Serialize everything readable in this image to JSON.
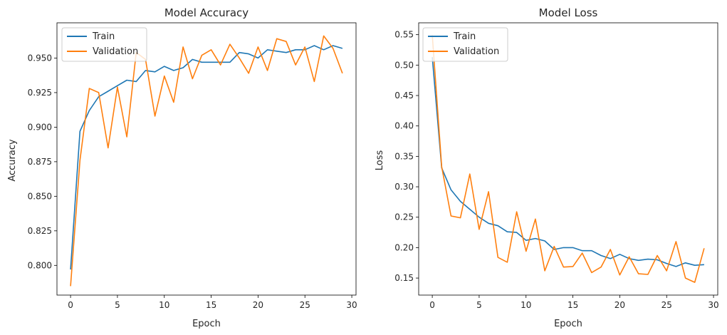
{
  "chart_data": [
    {
      "type": "line",
      "title": "Model Accuracy",
      "xlabel": "Epoch",
      "ylabel": "Accuracy",
      "xlim": [
        -1.45,
        30.45
      ],
      "ylim": [
        0.7785,
        0.9755
      ],
      "xticks": [
        0,
        5,
        10,
        15,
        20,
        25,
        30
      ],
      "yticks": [
        0.8,
        0.825,
        0.85,
        0.875,
        0.9,
        0.925,
        0.95
      ],
      "ytick_labels": [
        "0.800",
        "0.825",
        "0.850",
        "0.875",
        "0.900",
        "0.925",
        "0.950"
      ],
      "legend": "top-left",
      "grid": false,
      "x": [
        0,
        1,
        2,
        3,
        4,
        5,
        6,
        7,
        8,
        9,
        10,
        11,
        12,
        13,
        14,
        15,
        16,
        17,
        18,
        19,
        20,
        21,
        22,
        23,
        24,
        25,
        26,
        27,
        28,
        29
      ],
      "series": [
        {
          "name": "Train",
          "color": "#1f77b4",
          "values": [
            0.797,
            0.897,
            0.912,
            0.922,
            0.926,
            0.93,
            0.934,
            0.933,
            0.941,
            0.94,
            0.944,
            0.941,
            0.943,
            0.949,
            0.947,
            0.947,
            0.947,
            0.947,
            0.954,
            0.953,
            0.95,
            0.956,
            0.955,
            0.954,
            0.956,
            0.956,
            0.959,
            0.956,
            0.959,
            0.957
          ]
        },
        {
          "name": "Validation",
          "color": "#ff7f0e",
          "values": [
            0.785,
            0.876,
            0.928,
            0.925,
            0.885,
            0.929,
            0.893,
            0.954,
            0.949,
            0.908,
            0.937,
            0.918,
            0.958,
            0.935,
            0.952,
            0.956,
            0.945,
            0.96,
            0.95,
            0.939,
            0.958,
            0.941,
            0.964,
            0.962,
            0.945,
            0.958,
            0.933,
            0.966,
            0.957,
            0.939
          ]
        }
      ]
    },
    {
      "type": "line",
      "title": "Model Loss",
      "xlabel": "Epoch",
      "ylabel": "Loss",
      "xlim": [
        -1.45,
        30.45
      ],
      "ylim": [
        0.122,
        0.5695
      ],
      "xticks": [
        0,
        5,
        10,
        15,
        20,
        25,
        30
      ],
      "yticks": [
        0.15,
        0.2,
        0.25,
        0.3,
        0.35,
        0.4,
        0.45,
        0.5,
        0.55
      ],
      "ytick_labels": [
        "0.15",
        "0.20",
        "0.25",
        "0.30",
        "0.35",
        "0.40",
        "0.45",
        "0.50",
        "0.55"
      ],
      "legend": "top-left",
      "grid": false,
      "x": [
        0,
        1,
        2,
        3,
        4,
        5,
        6,
        7,
        8,
        9,
        10,
        11,
        12,
        13,
        14,
        15,
        16,
        17,
        18,
        19,
        20,
        21,
        22,
        23,
        24,
        25,
        26,
        27,
        28,
        29
      ],
      "series": [
        {
          "name": "Train",
          "color": "#1f77b4",
          "values": [
            0.513,
            0.331,
            0.295,
            0.276,
            0.263,
            0.25,
            0.24,
            0.236,
            0.226,
            0.225,
            0.212,
            0.215,
            0.211,
            0.197,
            0.2,
            0.2,
            0.195,
            0.195,
            0.187,
            0.182,
            0.189,
            0.182,
            0.179,
            0.181,
            0.18,
            0.174,
            0.169,
            0.175,
            0.171,
            0.172
          ]
        },
        {
          "name": "Validation",
          "color": "#ff7f0e",
          "values": [
            0.549,
            0.333,
            0.252,
            0.249,
            0.321,
            0.23,
            0.292,
            0.184,
            0.176,
            0.259,
            0.194,
            0.247,
            0.162,
            0.202,
            0.168,
            0.169,
            0.191,
            0.159,
            0.168,
            0.197,
            0.155,
            0.185,
            0.157,
            0.156,
            0.187,
            0.162,
            0.21,
            0.15,
            0.143,
            0.199
          ]
        }
      ]
    }
  ]
}
